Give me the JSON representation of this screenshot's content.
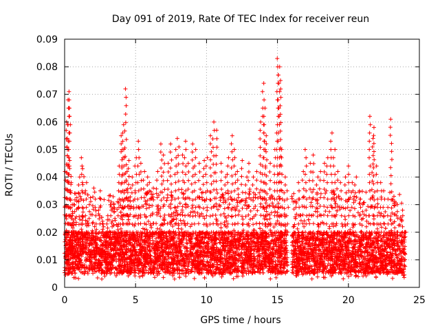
{
  "chart_data": {
    "type": "scatter",
    "title": "Day 091 of 2019, Rate Of TEC Index for receiver reun",
    "xlabel": "GPS time / hours",
    "ylabel": "ROTI / TECUs",
    "xlim": [
      0,
      25
    ],
    "ylim": [
      0,
      0.09
    ],
    "x_ticks": [
      0,
      5,
      10,
      15,
      20,
      25
    ],
    "x_tick_labels": [
      "0",
      "5",
      "10",
      "15",
      "20",
      "25"
    ],
    "y_ticks": [
      0,
      0.01,
      0.02,
      0.03,
      0.04,
      0.05,
      0.06,
      0.07,
      0.08,
      0.09
    ],
    "y_tick_labels": [
      "0",
      "0.01",
      "0.02",
      "0.03",
      "0.04",
      "0.05",
      "0.06",
      "0.07",
      "0.08",
      "0.09"
    ],
    "grid": true,
    "marker": "plus",
    "series": [
      {
        "name": "ROTI",
        "color": "#ff0000",
        "x": [
          0.05,
          0.15,
          0.2,
          0.25,
          0.3,
          0.35,
          0.4,
          0.45,
          0.5,
          0.6,
          0.7,
          0.8,
          1.0,
          1.2,
          1.3,
          1.5,
          1.7,
          2.0,
          2.2,
          2.5,
          2.7,
          3.0,
          3.3,
          3.5,
          3.8,
          4.0,
          4.1,
          4.2,
          4.3,
          4.4,
          4.5,
          4.6,
          4.8,
          5.0,
          5.2,
          5.4,
          5.6,
          5.8,
          6.0,
          6.2,
          6.5,
          6.8,
          7.0,
          7.3,
          7.5,
          7.8,
          8.0,
          8.3,
          8.5,
          8.7,
          9.0,
          9.2,
          9.5,
          9.8,
          10.0,
          10.3,
          10.5,
          10.7,
          11.0,
          11.3,
          11.5,
          11.8,
          12.0,
          12.2,
          12.5,
          12.8,
          13.0,
          13.3,
          13.5,
          13.8,
          14.0,
          14.1,
          14.2,
          14.5,
          14.8,
          15.0,
          15.1,
          15.2,
          15.3,
          15.5,
          15.7,
          16.2,
          16.5,
          16.8,
          17.0,
          17.3,
          17.5,
          17.8,
          18.0,
          18.3,
          18.5,
          18.8,
          19.0,
          19.2,
          19.5,
          19.8,
          20.0,
          20.3,
          20.5,
          20.8,
          21.0,
          21.3,
          21.5,
          21.7,
          21.8,
          22.0,
          22.3,
          22.5,
          22.8,
          23.0,
          23.2,
          23.5,
          23.8,
          24.0
        ],
        "y": [
          0.042,
          0.06,
          0.054,
          0.068,
          0.071,
          0.065,
          0.046,
          0.038,
          0.03,
          0.026,
          0.03,
          0.034,
          0.04,
          0.047,
          0.043,
          0.038,
          0.03,
          0.036,
          0.032,
          0.035,
          0.024,
          0.026,
          0.028,
          0.03,
          0.044,
          0.055,
          0.059,
          0.05,
          0.072,
          0.042,
          0.046,
          0.036,
          0.04,
          0.047,
          0.053,
          0.045,
          0.042,
          0.04,
          0.038,
          0.036,
          0.042,
          0.052,
          0.048,
          0.045,
          0.052,
          0.05,
          0.054,
          0.048,
          0.053,
          0.045,
          0.052,
          0.05,
          0.045,
          0.046,
          0.047,
          0.055,
          0.06,
          0.057,
          0.045,
          0.04,
          0.047,
          0.055,
          0.05,
          0.042,
          0.046,
          0.04,
          0.045,
          0.04,
          0.042,
          0.06,
          0.074,
          0.065,
          0.055,
          0.045,
          0.05,
          0.083,
          0.08,
          0.075,
          0.05,
          0.04,
          0.035,
          0.034,
          0.038,
          0.042,
          0.05,
          0.045,
          0.048,
          0.04,
          0.042,
          0.045,
          0.047,
          0.056,
          0.05,
          0.042,
          0.038,
          0.04,
          0.044,
          0.038,
          0.04,
          0.035,
          0.03,
          0.028,
          0.062,
          0.054,
          0.058,
          0.044,
          0.038,
          0.035,
          0.032,
          0.061,
          0.033,
          0.03,
          0.028,
          0.02
        ]
      }
    ],
    "dense_band": {
      "x_start": 0,
      "x_end": 24,
      "gap_start": 15.7,
      "gap_end": 16.0,
      "y_min": 0.003,
      "y_max": 0.035,
      "typical_y": [
        0.005,
        0.02
      ]
    }
  }
}
